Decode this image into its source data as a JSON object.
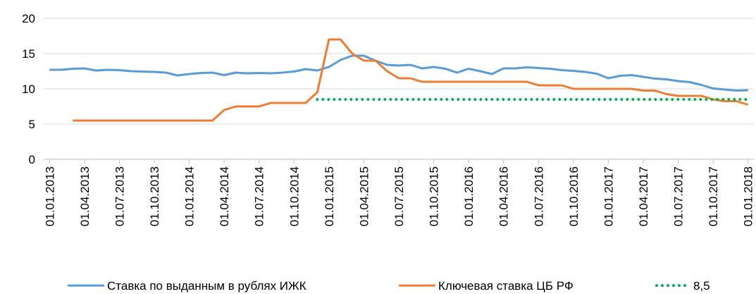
{
  "chart_data": {
    "type": "line",
    "categories": [
      "01.01.2013",
      null,
      null,
      "01.04.2013",
      null,
      null,
      "01.07.2013",
      null,
      null,
      "01.10.2013",
      null,
      null,
      "01.01.2014",
      null,
      null,
      "01.04.2014",
      null,
      null,
      "01.07.2014",
      null,
      null,
      "01.10.2014",
      null,
      null,
      "01.01.2015",
      null,
      null,
      "01.04.2015",
      null,
      null,
      "01.07.2015",
      null,
      null,
      "01.10.2015",
      null,
      null,
      "01.01.2016",
      null,
      null,
      "01.04.2016",
      null,
      null,
      "01.07.2016",
      null,
      null,
      "01.10.2016",
      null,
      null,
      "01.01.2017",
      null,
      null,
      "01.04.2017",
      null,
      null,
      "01.07.2017",
      null,
      null,
      "01.10.2017",
      null,
      null,
      "01.01.2018"
    ],
    "series": [
      {
        "name": "Ставка по выданным в рублях ИЖК",
        "color": "#5b9bd5",
        "style": "solid",
        "values": [
          12.7,
          12.7,
          12.85,
          12.9,
          12.6,
          12.7,
          12.65,
          12.5,
          12.45,
          12.4,
          12.3,
          11.9,
          12.1,
          12.25,
          12.3,
          11.95,
          12.3,
          12.2,
          12.25,
          12.2,
          12.3,
          12.45,
          12.8,
          12.6,
          13.1,
          14.1,
          14.7,
          14.7,
          14.0,
          13.4,
          13.3,
          13.4,
          12.9,
          13.1,
          12.85,
          12.3,
          12.85,
          12.5,
          12.1,
          12.9,
          12.9,
          13.05,
          12.95,
          12.85,
          12.65,
          12.55,
          12.4,
          12.15,
          11.5,
          11.85,
          11.95,
          11.7,
          11.45,
          11.35,
          11.1,
          10.95,
          10.55,
          10.05,
          9.9,
          9.75,
          9.8
        ]
      },
      {
        "name": "Ключевая ставка ЦБ РФ",
        "color": "#ed7d31",
        "style": "solid",
        "values": [
          null,
          null,
          5.5,
          5.5,
          5.5,
          5.5,
          5.5,
          5.5,
          5.5,
          5.5,
          5.5,
          5.5,
          5.5,
          5.5,
          5.5,
          7.0,
          7.5,
          7.5,
          7.5,
          8.0,
          8.0,
          8.0,
          8.0,
          9.5,
          17,
          17,
          15,
          14,
          14,
          12.5,
          11.5,
          11.5,
          11,
          11,
          11,
          11,
          11,
          11,
          11,
          11,
          11,
          11,
          10.5,
          10.5,
          10.5,
          10,
          10,
          10,
          10,
          10,
          10,
          9.75,
          9.75,
          9.25,
          9.0,
          9.0,
          9.0,
          8.5,
          8.25,
          8.25,
          7.75
        ]
      },
      {
        "name": "8,5",
        "color": "#00b050",
        "style": "dotted",
        "values": [
          null,
          null,
          null,
          null,
          null,
          null,
          null,
          null,
          null,
          null,
          null,
          null,
          null,
          null,
          null,
          null,
          null,
          null,
          null,
          null,
          null,
          null,
          null,
          8.5,
          8.5,
          8.5,
          8.5,
          8.5,
          8.5,
          8.5,
          8.5,
          8.5,
          8.5,
          8.5,
          8.5,
          8.5,
          8.5,
          8.5,
          8.5,
          8.5,
          8.5,
          8.5,
          8.5,
          8.5,
          8.5,
          8.5,
          8.5,
          8.5,
          8.5,
          8.5,
          8.5,
          8.5,
          8.5,
          8.5,
          8.5,
          8.5,
          8.5,
          8.5,
          8.5,
          8.5,
          8.5
        ]
      }
    ],
    "ylim": [
      0,
      20
    ],
    "yticks": [
      0,
      5,
      10,
      15,
      20
    ],
    "grid": true,
    "legend": "bottom"
  }
}
